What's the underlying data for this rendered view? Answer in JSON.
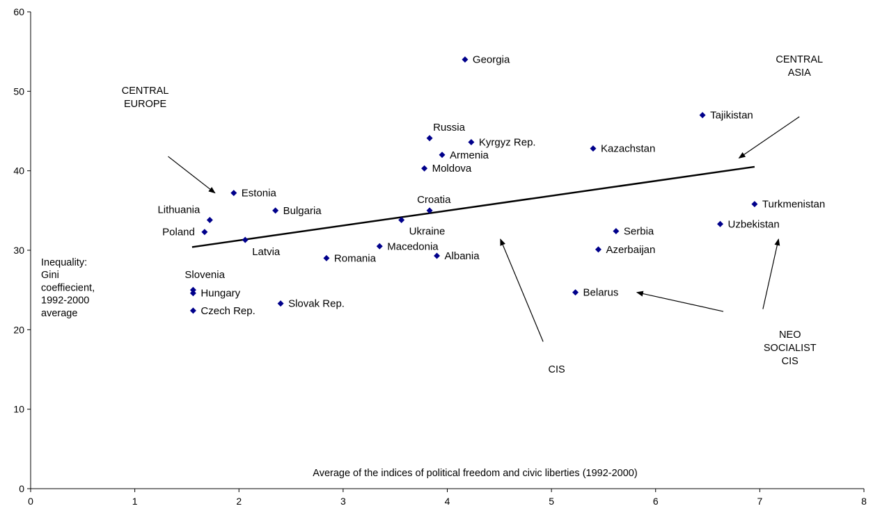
{
  "chart_data": {
    "type": "scatter",
    "xlabel": "Average of the indices of political freedom and civic liberties (1992-2000)",
    "ylabel": [
      "Inequality:",
      "Gini",
      "coeffiecient,",
      "1992-2000",
      "average"
    ],
    "xlim": [
      0,
      8
    ],
    "ylim": [
      0,
      60
    ],
    "x_ticks": [
      "0",
      "1",
      "2",
      "3",
      "4",
      "5",
      "6",
      "7",
      "8"
    ],
    "y_ticks": [
      "0",
      "10",
      "20",
      "30",
      "40",
      "50",
      "60"
    ],
    "grid": false,
    "marker_color": "#00008B",
    "points": [
      {
        "label": "Georgia",
        "x": 4.17,
        "y": 54.0
      },
      {
        "label": "Tajikistan",
        "x": 6.45,
        "y": 47.0
      },
      {
        "label": "Russia",
        "x": 3.83,
        "y": 44.1
      },
      {
        "label": "Kyrgyz Rep.",
        "x": 4.23,
        "y": 43.6
      },
      {
        "label": "Kazachstan",
        "x": 5.4,
        "y": 42.8
      },
      {
        "label": "Armenia",
        "x": 3.95,
        "y": 42.0
      },
      {
        "label": "Moldova",
        "x": 3.78,
        "y": 40.3
      },
      {
        "label": "Estonia",
        "x": 1.95,
        "y": 37.2
      },
      {
        "label": "Turkmenistan",
        "x": 6.95,
        "y": 35.8
      },
      {
        "label": "Bulgaria",
        "x": 2.35,
        "y": 35.0
      },
      {
        "label": "Croatia",
        "x": 3.83,
        "y": 35.0
      },
      {
        "label": "Lithuania",
        "x": 1.72,
        "y": 33.8
      },
      {
        "label": "Ukraine",
        "x": 3.56,
        "y": 33.8
      },
      {
        "label": "Uzbekistan",
        "x": 6.62,
        "y": 33.3
      },
      {
        "label": "Serbia",
        "x": 5.62,
        "y": 32.4
      },
      {
        "label": "Poland",
        "x": 1.67,
        "y": 32.3
      },
      {
        "label": "Latvia",
        "x": 2.06,
        "y": 31.3
      },
      {
        "label": "Macedonia",
        "x": 3.35,
        "y": 30.5
      },
      {
        "label": "Azerbaijan",
        "x": 5.45,
        "y": 30.1
      },
      {
        "label": "Albania",
        "x": 3.9,
        "y": 29.3
      },
      {
        "label": "Romania",
        "x": 2.84,
        "y": 29.0
      },
      {
        "label": "Slovenia",
        "x": 1.56,
        "y": 25.0
      },
      {
        "label": "Hungary",
        "x": 1.56,
        "y": 24.6
      },
      {
        "label": "Belarus",
        "x": 5.23,
        "y": 24.7
      },
      {
        "label": "Slovak Rep.",
        "x": 2.4,
        "y": 23.3
      },
      {
        "label": "Czech Rep.",
        "x": 1.56,
        "y": 22.4
      }
    ],
    "trendline": {
      "x": [
        1.55,
        6.95
      ],
      "y": [
        30.4,
        40.5
      ]
    },
    "annotations": [
      {
        "lines": [
          "CENTRAL",
          "EUROPE"
        ],
        "arrow_from": [
          1.32,
          41.8
        ],
        "arrow_to": [
          1.77,
          37.2
        ]
      },
      {
        "lines": [
          "CENTRAL",
          "ASIA"
        ],
        "arrow_from": [
          7.38,
          46.8
        ],
        "arrow_to": [
          6.8,
          41.6
        ]
      },
      {
        "lines": [
          "CIS"
        ],
        "arrow_from": [
          4.92,
          18.5
        ],
        "arrow_to": [
          4.51,
          31.4
        ]
      },
      {
        "lines": [
          "NEO",
          "SOCIALIST",
          "CIS"
        ],
        "arrow_from": [
          6.65,
          22.3
        ],
        "arrow_to": [
          5.82,
          24.7
        ]
      },
      {
        "lines": [],
        "arrow_from": [
          7.03,
          22.6
        ],
        "arrow_to": [
          7.18,
          31.4
        ]
      }
    ]
  }
}
